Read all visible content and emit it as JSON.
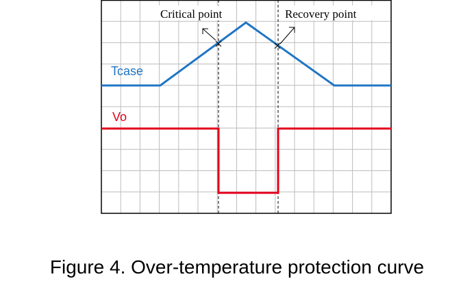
{
  "annotations": {
    "critical": "Critical point",
    "recovery": "Recovery point"
  },
  "curves": {
    "tcase": "Tcase",
    "vo": "Vo"
  },
  "caption": "Figure 4. Over-temperature protection curve"
}
